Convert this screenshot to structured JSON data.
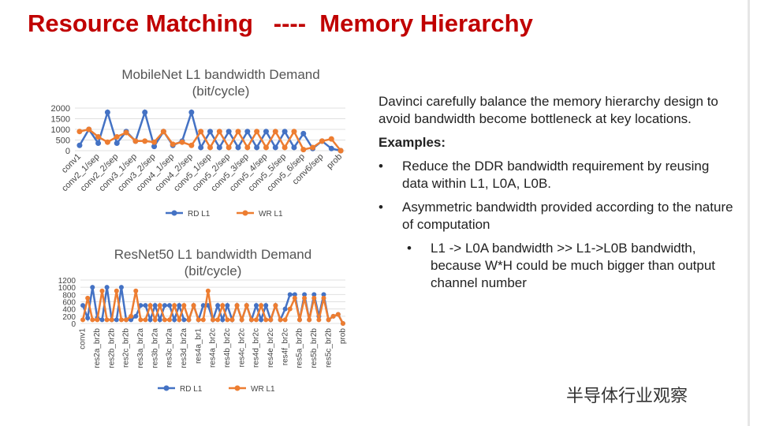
{
  "title": "Resource Matching   ----  Memory Hierarchy",
  "text": {
    "intro": "Davinci carefully balance the memory hierarchy design to avoid bandwidth become bottleneck at key locations.",
    "examples_heading": "Examples:",
    "bullets": [
      {
        "text": "Reduce the DDR bandwidth requirement by reusing data within L1, L0A, L0B."
      },
      {
        "text": "Asymmetric bandwidth provided according to the nature of computation",
        "sub": [
          "L1 -> L0A bandwidth >> L1->L0B bandwidth, because W*H could be much bigger than output channel number"
        ]
      }
    ]
  },
  "watermark": "半导体行业观察",
  "chart_data": [
    {
      "type": "line",
      "title": "MobileNet L1 bandwidth Demand",
      "subtitle": "(bit/cycle)",
      "categories": [
        "conv1",
        null,
        "conv2_1/sep",
        null,
        "conv2_2/sep",
        null,
        "conv3_1/sep",
        null,
        "conv3_2/sep",
        null,
        "conv4_1/sep",
        null,
        "conv4_2/sep",
        null,
        "conv5_1/sep",
        null,
        "conv5_2/sep",
        null,
        "conv5_3/sep",
        null,
        "conv5_4/sep",
        null,
        "conv5_5/sep",
        null,
        "conv5_6/sep",
        null,
        "conv6/sep",
        null,
        "prob"
      ],
      "series": [
        {
          "name": "RD L1",
          "color": "#4472c4",
          "values": [
            250,
            1000,
            350,
            1800,
            350,
            900,
            450,
            1800,
            200,
            900,
            250,
            450,
            1800,
            150,
            900,
            150,
            900,
            150,
            900,
            150,
            900,
            150,
            900,
            150,
            800,
            100,
            450,
            100,
            0
          ]
        },
        {
          "name": "WR L1",
          "color": "#ed7d31",
          "values": [
            900,
            1000,
            650,
            400,
            650,
            850,
            450,
            450,
            400,
            900,
            300,
            400,
            250,
            900,
            150,
            900,
            150,
            900,
            150,
            900,
            150,
            900,
            150,
            900,
            50,
            150,
            450,
            550,
            0
          ]
        }
      ],
      "ylim": [
        0,
        2000
      ],
      "yticks": [
        0,
        500,
        1000,
        1500,
        2000
      ],
      "grid": true,
      "legend": "bottom"
    },
    {
      "type": "line",
      "title": "ResNet50 L1 bandwidth Demand",
      "subtitle": "(bit/cycle)",
      "categories": [
        "conv1",
        null,
        null,
        "res2a_br2b",
        null,
        null,
        "res2b_br2b",
        null,
        null,
        "res2c_br2b",
        null,
        null,
        "res3a_br2a",
        null,
        null,
        "res3b_br2a",
        null,
        null,
        "res3c_br2a",
        null,
        null,
        "res3d_br2a",
        null,
        null,
        "res4a_br1",
        null,
        null,
        "res4a_br2c",
        null,
        null,
        "res4b_br2c",
        null,
        null,
        "res4c_br2c",
        null,
        null,
        "res4d_br2c",
        null,
        null,
        "res4e_br2c",
        null,
        null,
        "res4f_br2c",
        null,
        null,
        "res5a_br2b",
        null,
        null,
        "res5b_br2b",
        null,
        null,
        "res5c_br2b",
        null,
        null,
        "prob"
      ],
      "series": [
        {
          "name": "RD L1",
          "color": "#4472c4",
          "values": [
            500,
            150,
            1000,
            150,
            100,
            1000,
            100,
            100,
            1000,
            100,
            100,
            200,
            500,
            500,
            100,
            500,
            100,
            500,
            500,
            100,
            500,
            100,
            100,
            500,
            100,
            500,
            500,
            100,
            500,
            100,
            500,
            100,
            500,
            100,
            500,
            100,
            500,
            100,
            500,
            100,
            500,
            100,
            400,
            800,
            800,
            100,
            800,
            100,
            800,
            200,
            800,
            100,
            200,
            250,
            0
          ]
        },
        {
          "name": "WR L1",
          "color": "#ed7d31",
          "values": [
            100,
            700,
            100,
            100,
            900,
            100,
            100,
            900,
            100,
            100,
            200,
            900,
            100,
            100,
            500,
            100,
            500,
            100,
            100,
            500,
            100,
            500,
            100,
            500,
            100,
            100,
            900,
            100,
            100,
            500,
            100,
            100,
            500,
            100,
            500,
            100,
            100,
            500,
            100,
            100,
            500,
            100,
            100,
            400,
            700,
            100,
            700,
            100,
            700,
            100,
            700,
            100,
            200,
            250,
            0
          ]
        }
      ],
      "ylim": [
        0,
        1200
      ],
      "yticks": [
        0,
        200,
        400,
        600,
        800,
        1000,
        1200
      ],
      "grid": true,
      "legend": "bottom"
    }
  ]
}
